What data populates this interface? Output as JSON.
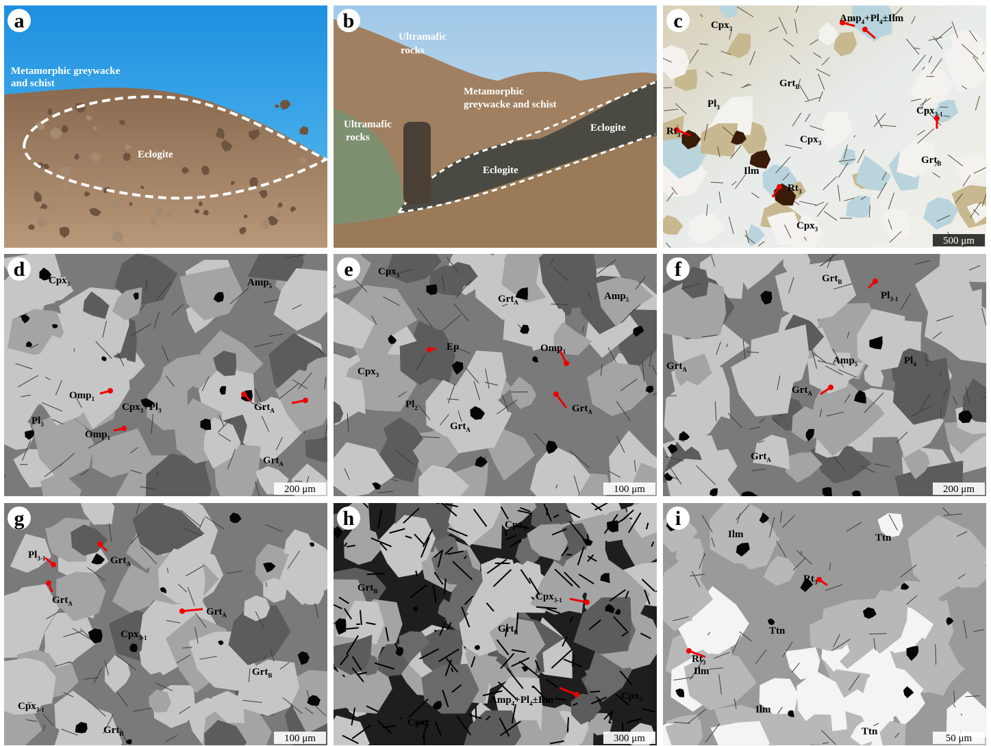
{
  "panels": [
    {
      "letter": "a",
      "labels": [
        [
          "Metamorphic greywacke"
        ],
        [
          "and schist"
        ],
        [
          "Eclogite"
        ]
      ]
    },
    {
      "letter": "b",
      "labels": [
        [
          "Ultramafic"
        ],
        [
          "rocks"
        ],
        [
          "Metamorphic"
        ],
        [
          "greywacke and schist"
        ],
        [
          "Ultramafic"
        ],
        [
          "rocks"
        ],
        [
          "Eclogite"
        ],
        [
          "Eclogite"
        ]
      ]
    },
    {
      "letter": "c",
      "labels": [
        [
          "Cpx",
          "3"
        ],
        [
          "Amp",
          "4",
          "+Pl",
          "4",
          "±Ilm"
        ],
        [
          "Grt",
          "B"
        ],
        [
          "Pl",
          "3"
        ],
        [
          "Cpx",
          "3-1"
        ],
        [
          "Rt",
          "3"
        ],
        [
          "Cpx",
          "3"
        ],
        [
          "Grt",
          "B"
        ],
        [
          "Ilm"
        ],
        [
          "Rt",
          "3"
        ],
        [
          "Cpx",
          "3"
        ]
      ],
      "scale_bar": "500 μm"
    },
    {
      "letter": "d",
      "labels": [
        [
          "Cpx",
          "3"
        ],
        [
          "Amp",
          "5"
        ],
        [
          "Omp",
          "1"
        ],
        [
          "Cpx",
          "3",
          "+Pl",
          "3"
        ],
        [
          "Grt",
          "A"
        ],
        [
          "Pl",
          "3"
        ],
        [
          "Omp",
          "1"
        ],
        [
          "Grt",
          "A"
        ]
      ],
      "scale_bar": "200 μm"
    },
    {
      "letter": "e",
      "labels": [
        [
          "Cpx",
          "3"
        ],
        [
          "Grt",
          "A"
        ],
        [
          "Amp",
          "5"
        ],
        [
          "Ep"
        ],
        [
          "Omp",
          "1"
        ],
        [
          "Cpx",
          "3"
        ],
        [
          "Pl",
          "2"
        ],
        [
          "Grt",
          "A"
        ],
        [
          "Grt",
          "A"
        ]
      ],
      "scale_bar": "100 μm"
    },
    {
      "letter": "f",
      "labels": [
        [
          "Grt",
          "B"
        ],
        [
          "Pl",
          "3-1"
        ],
        [
          "Grt",
          "A"
        ],
        [
          "Amp",
          "5"
        ],
        [
          "Pl",
          "4"
        ],
        [
          "Grt",
          "A"
        ],
        [
          "Grt",
          "A"
        ]
      ],
      "scale_bar": "200 μm"
    },
    {
      "letter": "g",
      "labels": [
        [
          "Pl",
          "3-1"
        ],
        [
          "Grt",
          "A"
        ],
        [
          "Grt",
          "A"
        ],
        [
          "Grt",
          "A"
        ],
        [
          "Cpx",
          "3-1"
        ],
        [
          "Grt",
          "B"
        ],
        [
          "Cpx",
          "3-1"
        ],
        [
          "Grt",
          "B"
        ]
      ],
      "scale_bar": "100 μm"
    },
    {
      "letter": "h",
      "labels": [
        [
          "Cpx",
          "3"
        ],
        [
          "Grt",
          "B"
        ],
        [
          "Cpx",
          "3-1"
        ],
        [
          "Grt",
          "B"
        ],
        [
          "Amp",
          "4",
          "+Pl",
          "4",
          "±Ilm"
        ],
        [
          "Cpx",
          "3"
        ],
        [
          "Cpx",
          "3"
        ]
      ],
      "scale_bar": "300 μm"
    },
    {
      "letter": "i",
      "labels": [
        [
          "Ilm"
        ],
        [
          "Ttn"
        ],
        [
          "Rt",
          "3"
        ],
        [
          "Ttn"
        ],
        [
          "Rt",
          "3"
        ],
        [
          "Ilm"
        ],
        [
          "Ilm"
        ],
        [
          "Ttn"
        ]
      ],
      "scale_bar": "50 μm"
    }
  ]
}
